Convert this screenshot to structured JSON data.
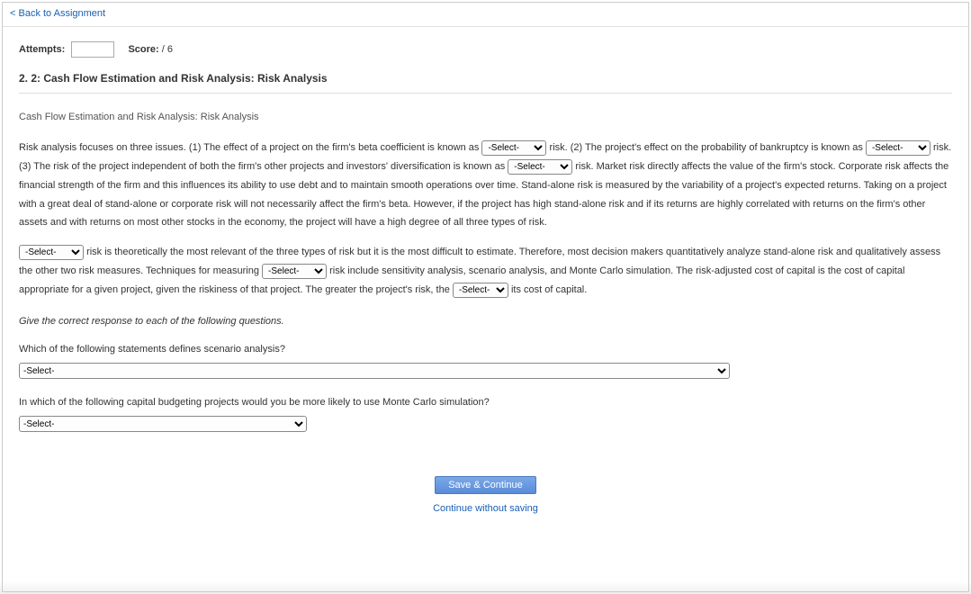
{
  "nav": {
    "back_label": "Back to Assignment"
  },
  "meta": {
    "attempts_label": "Attempts:",
    "attempts_value": "",
    "score_label": "Score:",
    "score_value": "/ 6"
  },
  "question": {
    "number_title": "2.  2: Cash Flow Estimation and Risk Analysis: Risk Analysis",
    "section_heading": "Cash Flow Estimation and Risk Analysis: Risk Analysis"
  },
  "select_placeholder": "-Select-",
  "p1": {
    "t1": "Risk analysis focuses on three issues. (1) The effect of a project on the firm's beta coefficient is known as ",
    "t2": " risk. (2) The project's effect on the probability of bankruptcy is known as ",
    "t3": " risk. (3) The risk of the project independent of both the firm's other projects and investors' diversification is known as ",
    "t4": " risk. Market risk directly affects the value of the firm's stock. Corporate risk affects the financial strength of the firm and this influences its ability to use debt and to maintain smooth operations over time. Stand-alone risk is measured by the variability of a project's expected returns. Taking on a project with a great deal of stand-alone or corporate risk will not necessarily affect the firm's beta. However, if the project has high stand-alone risk and if its returns are highly correlated with returns on the firm's other assets and with returns on most other stocks in the economy, the project will have a high degree of all three types of risk."
  },
  "p2": {
    "t1": " risk is theoretically the most relevant of the three types of risk but it is the most difficult to estimate. Therefore, most decision makers quantitatively analyze stand-alone risk and qualitatively assess the other two risk measures. Techniques for measuring ",
    "t2": " risk include sensitivity analysis, scenario analysis, and Monte Carlo simulation. The risk-adjusted cost of capital is the cost of capital appropriate for a given project, given the riskiness of that project. The greater the project's risk, the ",
    "t3": " its cost of capital."
  },
  "instruction": "Give the correct response to each of the following questions.",
  "q1": {
    "text": "Which of the following statements defines scenario analysis?",
    "select_width": 790
  },
  "q2": {
    "text": "In which of the following capital budgeting projects would you be more likely to use Monte Carlo simulation?",
    "select_width": 320
  },
  "footer": {
    "save_label": "Save & Continue",
    "continue_label": "Continue without saving"
  },
  "select_widths": {
    "inline_std": 72,
    "inline_sm": 62
  }
}
